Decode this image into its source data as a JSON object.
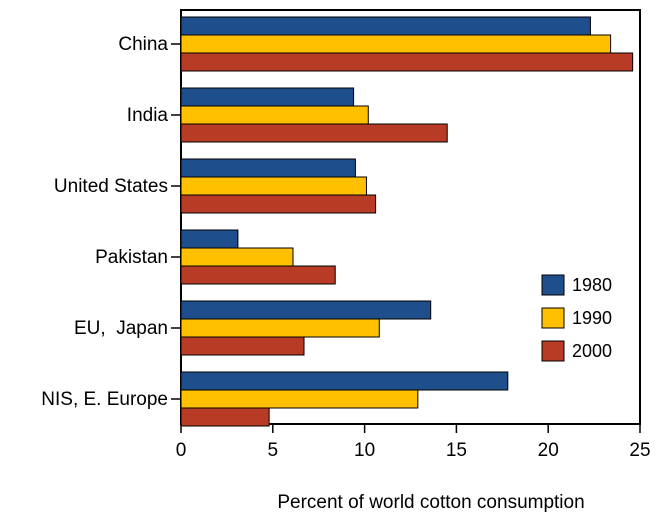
{
  "chart_data": {
    "type": "bar",
    "orientation": "horizontal",
    "title": "",
    "xlabel": "Percent of world cotton consumption",
    "ylabel": "",
    "categories": [
      "China",
      "India",
      "United States",
      "Pakistan",
      "EU,  Japan",
      "NIS, E. Europe"
    ],
    "series": [
      {
        "name": "1980",
        "color": "#1f4e8c",
        "values": [
          22.3,
          9.4,
          9.5,
          3.1,
          13.6,
          17.8
        ]
      },
      {
        "name": "1990",
        "color": "#ffc000",
        "values": [
          23.4,
          10.2,
          10.1,
          6.1,
          10.8,
          12.9
        ]
      },
      {
        "name": "2000",
        "color": "#b83b26",
        "values": [
          24.6,
          14.5,
          10.6,
          8.4,
          6.7,
          4.8
        ]
      }
    ],
    "xlim": [
      0,
      25
    ],
    "xticks": [
      0,
      5,
      10,
      15,
      20,
      25
    ],
    "grid": false,
    "legend_position": "lower-right"
  }
}
